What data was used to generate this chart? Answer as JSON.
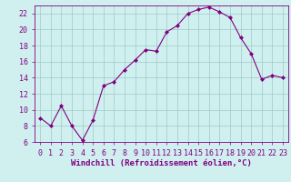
{
  "x": [
    0,
    1,
    2,
    3,
    4,
    5,
    6,
    7,
    8,
    9,
    10,
    11,
    12,
    13,
    14,
    15,
    16,
    17,
    18,
    19,
    20,
    21,
    22,
    23
  ],
  "y": [
    9.0,
    8.0,
    10.5,
    8.0,
    6.2,
    8.7,
    13.0,
    13.5,
    15.0,
    16.2,
    17.5,
    17.3,
    19.7,
    20.5,
    22.0,
    22.5,
    22.8,
    22.2,
    21.5,
    19.0,
    17.0,
    13.8,
    14.3,
    14.0
  ],
  "line_color": "#800080",
  "marker": "D",
  "marker_size": 2.0,
  "bg_color": "#d0f0f0",
  "grid_color": "#a0c8c8",
  "xlabel": "Windchill (Refroidissement éolien,°C)",
  "ylim": [
    6,
    23
  ],
  "xlim": [
    -0.5,
    23.5
  ],
  "yticks": [
    6,
    8,
    10,
    12,
    14,
    16,
    18,
    20,
    22
  ],
  "xticks": [
    0,
    1,
    2,
    3,
    4,
    5,
    6,
    7,
    8,
    9,
    10,
    11,
    12,
    13,
    14,
    15,
    16,
    17,
    18,
    19,
    20,
    21,
    22,
    23
  ],
  "tick_label_color": "#800080",
  "axis_color": "#800080",
  "tick_fontsize": 6,
  "xlabel_fontsize": 6.5,
  "linewidth": 0.8
}
